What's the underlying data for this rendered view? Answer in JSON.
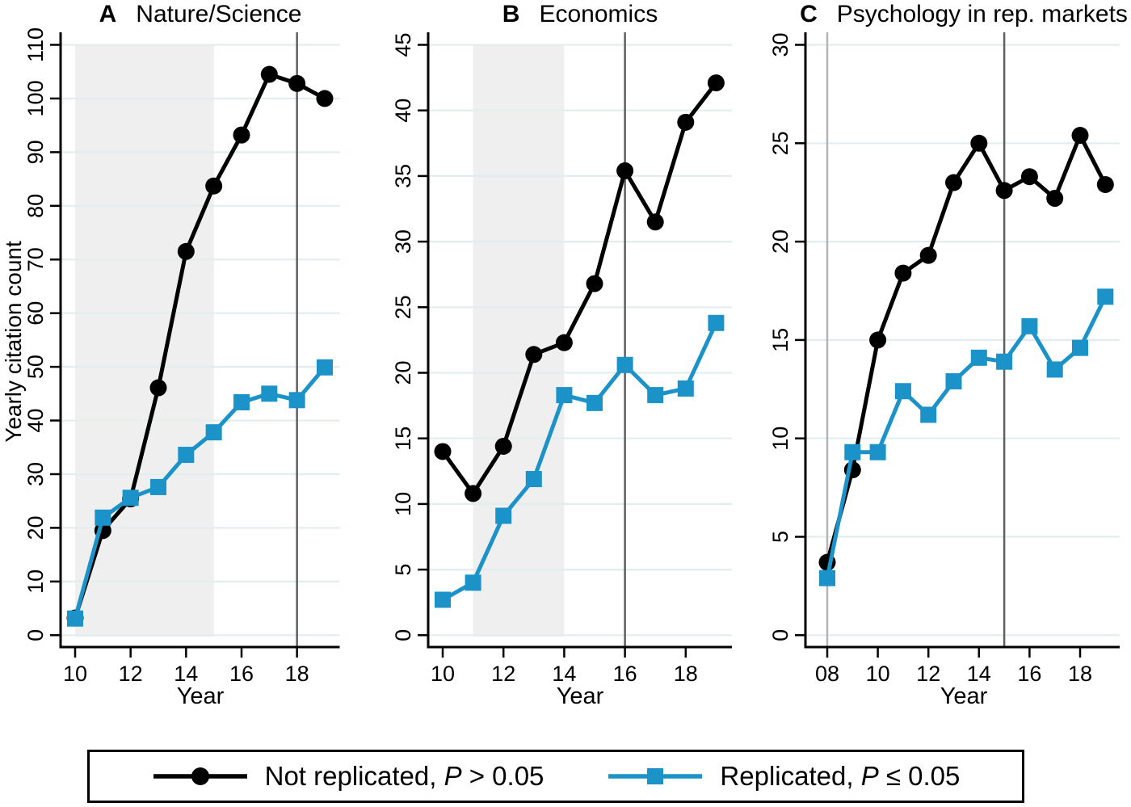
{
  "figure": {
    "legend": {
      "entries": [
        {
          "pre": "Not replicated, ",
          "p": "P",
          "post": " > 0.05",
          "color": "#000000",
          "marker": "circle"
        },
        {
          "pre": "Replicated, ",
          "p": "P",
          "post": " ≤ 0.05",
          "color": "#1b92c8",
          "marker": "square"
        }
      ]
    },
    "colors": {
      "gridline": "#e4edee",
      "shaded_band": "#efefef",
      "vline_dark": "#5f5f5f",
      "vline_light": "#b5b5b5",
      "axis": "#000000"
    }
  },
  "chart_data": [
    {
      "type": "line",
      "panel_label": "A",
      "title": "Nature/Science",
      "xlabel": "Year",
      "ylabel": "Yearly citation count",
      "x": [
        10,
        11,
        12,
        13,
        14,
        15,
        16,
        17,
        18,
        19
      ],
      "x_ticks": [
        10,
        12,
        14,
        16,
        18
      ],
      "x_tick_labels": [
        "10",
        "12",
        "14",
        "16",
        "18"
      ],
      "ylim": [
        0,
        110
      ],
      "y_ticks": [
        0,
        10,
        20,
        30,
        40,
        50,
        60,
        70,
        80,
        90,
        100,
        110
      ],
      "grid": "horizontal",
      "shaded_band_x": [
        10,
        15
      ],
      "vline_x": 18,
      "series": [
        {
          "name": "Not replicated, P > 0.05",
          "marker": "circle",
          "color": "#000000",
          "values": [
            3.2,
            19.5,
            25.4,
            46.1,
            71.5,
            83.7,
            93.2,
            104.5,
            102.8,
            100.0
          ]
        },
        {
          "name": "Replicated, P ≤ 0.05",
          "marker": "square",
          "color": "#1b92c8",
          "values": [
            3.1,
            21.9,
            25.6,
            27.6,
            33.6,
            37.8,
            43.4,
            45.0,
            43.8,
            49.9
          ]
        }
      ]
    },
    {
      "type": "line",
      "panel_label": "B",
      "title": "Economics",
      "xlabel": "Year",
      "ylabel": "",
      "x": [
        10,
        11,
        12,
        13,
        14,
        15,
        16,
        17,
        18,
        19
      ],
      "x_ticks": [
        10,
        12,
        14,
        16,
        18
      ],
      "x_tick_labels": [
        "10",
        "12",
        "14",
        "16",
        "18"
      ],
      "ylim": [
        0,
        45
      ],
      "y_ticks": [
        0,
        5,
        10,
        15,
        20,
        25,
        30,
        35,
        40,
        45
      ],
      "grid": "horizontal",
      "shaded_band_x": [
        11,
        14
      ],
      "vline_x": 16,
      "series": [
        {
          "name": "Not replicated, P > 0.05",
          "marker": "circle",
          "color": "#000000",
          "values": [
            14.0,
            10.8,
            14.4,
            21.4,
            22.3,
            26.8,
            35.4,
            31.5,
            39.1,
            42.1
          ]
        },
        {
          "name": "Replicated, P ≤ 0.05",
          "marker": "square",
          "color": "#1b92c8",
          "values": [
            2.7,
            4.0,
            9.1,
            11.9,
            18.3,
            17.7,
            20.6,
            18.3,
            18.8,
            23.8
          ]
        }
      ]
    },
    {
      "type": "line",
      "panel_label": "C",
      "title": "Psychology in rep. markets",
      "xlabel": "Year",
      "ylabel": "",
      "x": [
        8,
        9,
        10,
        11,
        12,
        13,
        14,
        15,
        16,
        17,
        18,
        19
      ],
      "x_ticks": [
        8,
        10,
        12,
        14,
        16,
        18
      ],
      "x_tick_labels": [
        "08",
        "10",
        "12",
        "14",
        "16",
        "18"
      ],
      "ylim": [
        0,
        30
      ],
      "y_ticks": [
        0,
        5,
        10,
        15,
        20,
        25,
        30
      ],
      "grid": "horizontal",
      "vline_light_x": 8,
      "vline_x": 15,
      "series": [
        {
          "name": "Not replicated, P > 0.05",
          "marker": "circle",
          "color": "#000000",
          "values": [
            3.7,
            8.4,
            15.0,
            18.4,
            19.3,
            23.0,
            25.0,
            22.6,
            23.3,
            22.2,
            25.4,
            22.9
          ]
        },
        {
          "name": "Replicated, P ≤ 0.05",
          "marker": "square",
          "color": "#1b92c8",
          "values": [
            2.9,
            9.3,
            9.3,
            12.4,
            11.2,
            12.9,
            14.1,
            13.9,
            15.7,
            13.5,
            14.6,
            17.2
          ]
        }
      ]
    }
  ]
}
